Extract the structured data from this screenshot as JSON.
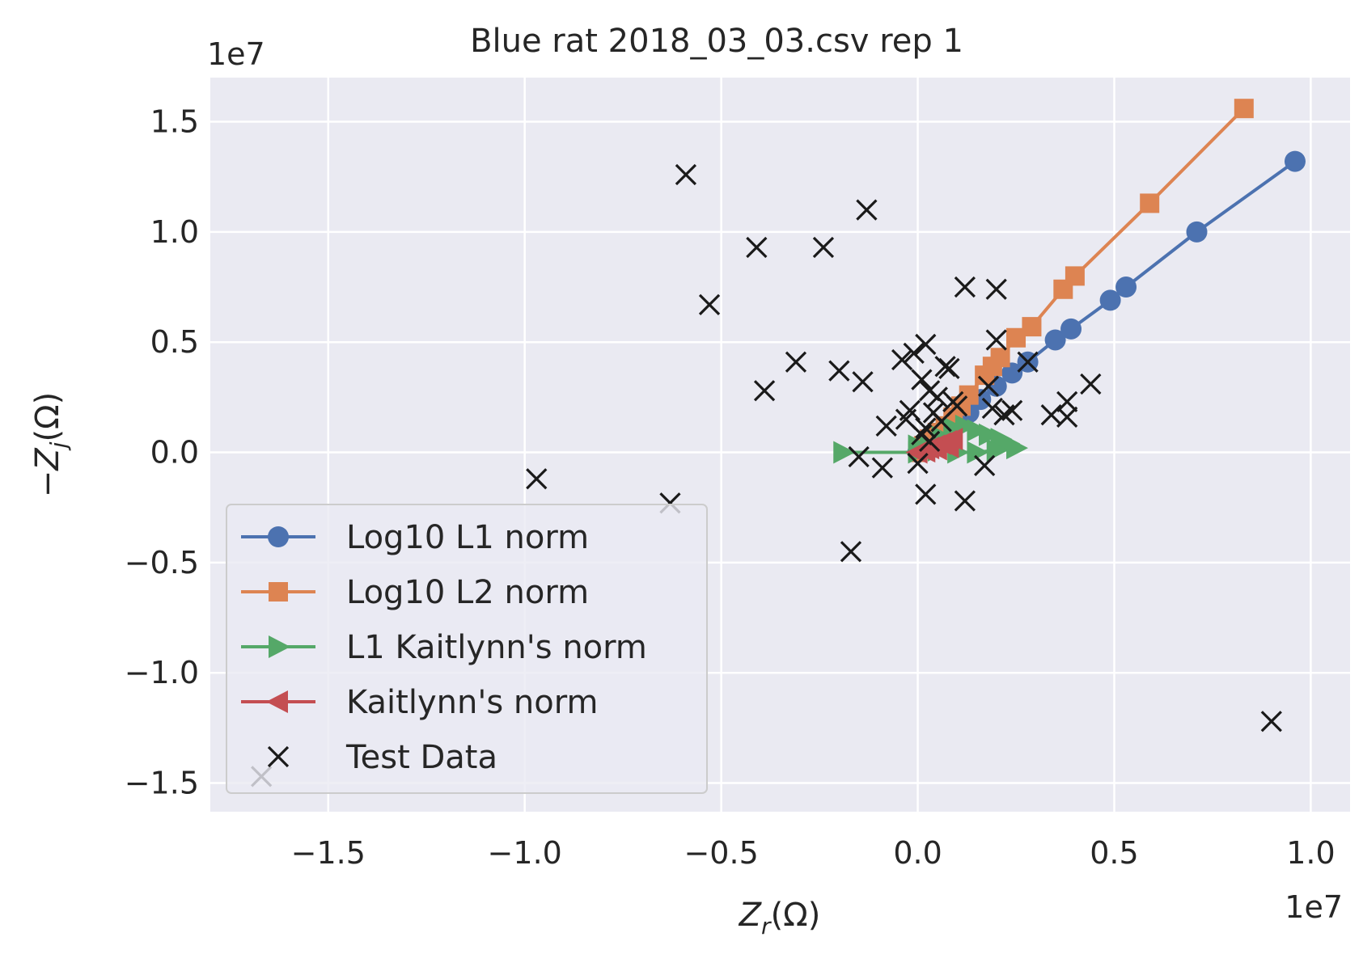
{
  "chart_data": {
    "type": "scatter",
    "title": "Blue rat 2018_03_03.csv rep 1",
    "xlabel": "Z_r(Ω)",
    "ylabel": "−Z_j(Ω)",
    "x_offset_label": "1e7",
    "y_offset_label": "1e7",
    "xlim": [
      -18000000,
      11000000
    ],
    "ylim": [
      -16300000,
      17000000
    ],
    "xticks": [
      -15000000,
      -10000000,
      -5000000,
      0,
      5000000,
      10000000
    ],
    "xtick_labels": [
      "−1.5",
      "−1.0",
      "−0.5",
      "0.0",
      "0.5",
      "1.0"
    ],
    "yticks": [
      -15000000,
      -10000000,
      -5000000,
      0,
      5000000,
      10000000,
      15000000
    ],
    "ytick_labels": [
      "−1.5",
      "−1.0",
      "−0.5",
      "0.0",
      "0.5",
      "1.0",
      "1.5"
    ],
    "grid": true,
    "legend_position": "lower-left",
    "colors": {
      "background": "#eaeaf2",
      "grid": "#ffffff",
      "series": [
        "#4c72b0",
        "#dd8452",
        "#55a868",
        "#c44e52",
        "#1a1a1a"
      ]
    },
    "series": [
      {
        "name": "Log10 L1 norm",
        "marker": "circle",
        "x": [
          0,
          200000,
          400000,
          600000,
          800000,
          1000000,
          1300000,
          1600000,
          2000000,
          2400000,
          2800000,
          3500000,
          3900000,
          4900000,
          5300000,
          7100000,
          9600000
        ],
        "y": [
          0,
          200000,
          450000,
          700000,
          1000000,
          1300000,
          1800000,
          2400000,
          3000000,
          3600000,
          4100000,
          5100000,
          5600000,
          6900000,
          7500000,
          10000000,
          13200000
        ]
      },
      {
        "name": "Log10 L2 norm",
        "marker": "square",
        "x": [
          0,
          150000,
          300000,
          500000,
          700000,
          900000,
          1100000,
          1300000,
          1700000,
          1900000,
          2100000,
          2500000,
          2900000,
          3700000,
          4000000,
          5900000,
          8300000
        ],
        "y": [
          0,
          300000,
          600000,
          900000,
          1200000,
          1600000,
          2100000,
          2600000,
          3500000,
          3900000,
          4300000,
          5200000,
          5700000,
          7400000,
          8000000,
          11300000,
          15600000
        ]
      },
      {
        "name": "L1 Kaitlynn's norm",
        "marker": "triangle-right",
        "x": [
          -1900000,
          0,
          300000,
          600000,
          900000,
          1200000,
          1500000,
          1800000,
          2100000,
          2300000,
          2500000,
          2000000,
          1500000,
          1000000,
          500000,
          0
        ],
        "y": [
          0,
          0,
          300000,
          700000,
          1100000,
          1200000,
          1000000,
          800000,
          600000,
          400000,
          200000,
          100000,
          0,
          0,
          100000,
          300000
        ]
      },
      {
        "name": "Kaitlynn's norm",
        "marker": "triangle-left",
        "x": [
          0,
          150000,
          300000,
          450000,
          600000,
          750000,
          900000,
          200000,
          500000,
          800000
        ],
        "y": [
          0,
          100000,
          200000,
          300000,
          400000,
          500000,
          600000,
          50000,
          150000,
          250000
        ]
      },
      {
        "name": "Test Data",
        "marker": "x",
        "x": [
          -5900000,
          -1300000,
          -4100000,
          -2400000,
          -5300000,
          -3100000,
          -3900000,
          -2000000,
          -1400000,
          1200000,
          2000000,
          200000,
          -100000,
          2000000,
          700000,
          2800000,
          4400000,
          3400000,
          3800000,
          3800000,
          2400000,
          1900000,
          1700000,
          -9700000,
          -6300000,
          -1700000,
          -16700000,
          9000000,
          200000,
          1200000,
          -1500000,
          -900000,
          -800000,
          0,
          100000,
          -200000,
          -400000,
          -300000,
          300000,
          500000,
          800000,
          1000000,
          1800000,
          2200000,
          400000,
          600000,
          900000,
          100000,
          200000,
          300000
        ],
        "y": [
          12600000,
          11000000,
          9300000,
          9300000,
          6700000,
          4100000,
          2800000,
          3700000,
          3200000,
          7500000,
          7400000,
          4900000,
          4500000,
          5100000,
          3900000,
          4100000,
          3100000,
          1700000,
          1600000,
          2300000,
          1900000,
          2000000,
          -600000,
          -1200000,
          -2300000,
          -4500000,
          -14700000,
          -12200000,
          -1900000,
          -2200000,
          -200000,
          -700000,
          1200000,
          -500000,
          3300000,
          1900000,
          4200000,
          1500000,
          2800000,
          2500000,
          3800000,
          2100000,
          3000000,
          1700000,
          1800000,
          1400000,
          2300000,
          800000,
          1100000,
          500000
        ]
      }
    ]
  }
}
